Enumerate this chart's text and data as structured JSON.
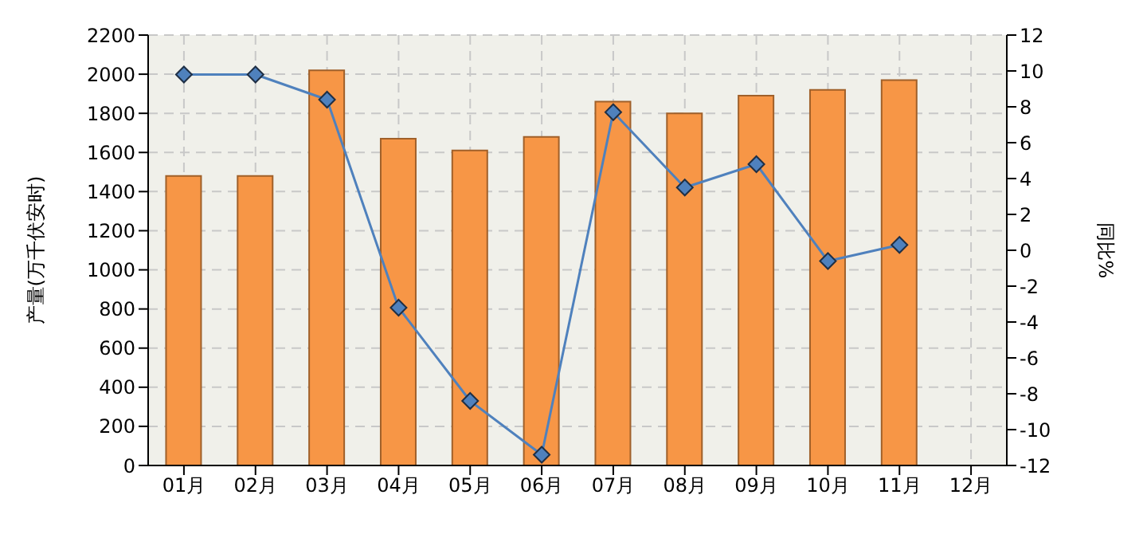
{
  "chart_data": {
    "type": "bar",
    "ylabel": "产量(万千伏安时)",
    "y2label": "同比%",
    "categories": [
      "01月",
      "02月",
      "03月",
      "04月",
      "05月",
      "06月",
      "07月",
      "08月",
      "09月",
      "10月",
      "11月",
      "12月"
    ],
    "series": [
      {
        "color": "#f79646",
        "values": [
          1480,
          1480,
          2020,
          1670,
          1610,
          1680,
          1860,
          1800,
          1890,
          1920,
          1970,
          null
        ]
      },
      {
        "type": "line",
        "axis": "y2",
        "color": "#4f81bd",
        "marker": "diamond",
        "values": [
          9.8,
          9.8,
          8.4,
          -3.2,
          -8.4,
          -11.4,
          7.7,
          3.5,
          4.8,
          -0.6,
          0.3,
          null
        ]
      }
    ],
    "ylim": [
      0,
      2200
    ],
    "yticks": [
      0,
      200,
      400,
      600,
      800,
      1000,
      1200,
      1400,
      1600,
      1800,
      2000,
      2200
    ],
    "y2lim": [
      -12,
      12
    ],
    "y2ticks": [
      -12,
      -10,
      -8,
      -6,
      -4,
      -2,
      0,
      2,
      4,
      6,
      8,
      10,
      12
    ],
    "grid": true,
    "legend": false
  }
}
